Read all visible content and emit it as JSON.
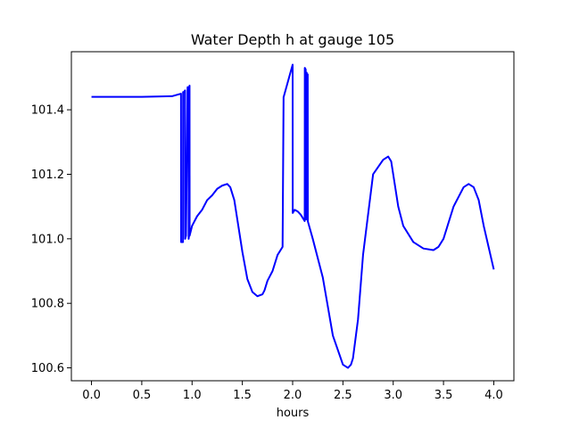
{
  "chart_data": {
    "type": "line",
    "title": "Water Depth h at gauge 105",
    "xlabel": "hours",
    "ylabel": "",
    "xlim": [
      -0.2,
      4.2
    ],
    "ylim": [
      100.56,
      101.58
    ],
    "xticks": [
      0.0,
      0.5,
      1.0,
      1.5,
      2.0,
      2.5,
      3.0,
      3.5,
      4.0
    ],
    "xtick_labels": [
      "0.0",
      "0.5",
      "1.0",
      "1.5",
      "2.0",
      "2.5",
      "3.0",
      "3.5",
      "4.0"
    ],
    "yticks": [
      100.6,
      100.8,
      101.0,
      101.2,
      101.4
    ],
    "ytick_labels": [
      "100.6",
      "100.8",
      "101.0",
      "101.2",
      "101.4"
    ],
    "grid": false,
    "legend": "none",
    "series": [
      {
        "color": "#0000ff",
        "x": [
          0.0,
          0.5,
          0.8,
          0.89,
          0.891,
          0.91,
          0.911,
          0.92,
          0.93,
          0.931,
          0.94,
          0.955,
          0.956,
          0.965,
          0.966,
          0.97,
          0.975,
          0.976,
          0.98,
          1.0,
          1.05,
          1.1,
          1.15,
          1.2,
          1.25,
          1.3,
          1.35,
          1.38,
          1.42,
          1.46,
          1.5,
          1.55,
          1.6,
          1.65,
          1.7,
          1.72,
          1.75,
          1.8,
          1.85,
          1.9,
          1.91,
          1.911,
          2.0,
          2.001,
          2.02,
          2.05,
          2.08,
          2.1,
          2.11,
          2.12,
          2.121,
          2.13,
          2.131,
          2.135,
          2.14,
          2.141,
          2.145,
          2.15,
          2.151,
          2.155,
          2.2,
          2.3,
          2.4,
          2.5,
          2.55,
          2.58,
          2.6,
          2.65,
          2.7,
          2.8,
          2.9,
          2.95,
          2.98,
          3.0,
          3.05,
          3.1,
          3.2,
          3.3,
          3.4,
          3.45,
          3.5,
          3.6,
          3.7,
          3.75,
          3.8,
          3.85,
          3.9,
          4.0
        ],
        "y": [
          101.44,
          101.44,
          101.442,
          101.45,
          100.99,
          100.99,
          101.455,
          101.455,
          101.46,
          101.0,
          101.01,
          101.46,
          101.47,
          101.47,
          101.0,
          101.01,
          101.475,
          101.01,
          101.015,
          101.04,
          101.07,
          101.09,
          101.12,
          101.135,
          101.155,
          101.165,
          101.17,
          101.16,
          101.12,
          101.04,
          100.96,
          100.875,
          100.835,
          100.822,
          100.828,
          100.84,
          100.87,
          100.9,
          100.95,
          100.975,
          101.44,
          101.44,
          101.54,
          101.08,
          101.09,
          101.085,
          101.075,
          101.065,
          101.06,
          101.055,
          101.53,
          101.525,
          101.07,
          101.06,
          101.515,
          101.065,
          101.06,
          101.51,
          101.055,
          101.05,
          101.0,
          100.88,
          100.7,
          100.61,
          100.6,
          100.61,
          100.63,
          100.75,
          100.95,
          101.2,
          101.245,
          101.255,
          101.24,
          101.2,
          101.1,
          101.04,
          100.99,
          100.97,
          100.965,
          100.975,
          101.0,
          101.1,
          101.16,
          101.17,
          101.16,
          101.12,
          101.04,
          100.905
        ]
      }
    ]
  }
}
